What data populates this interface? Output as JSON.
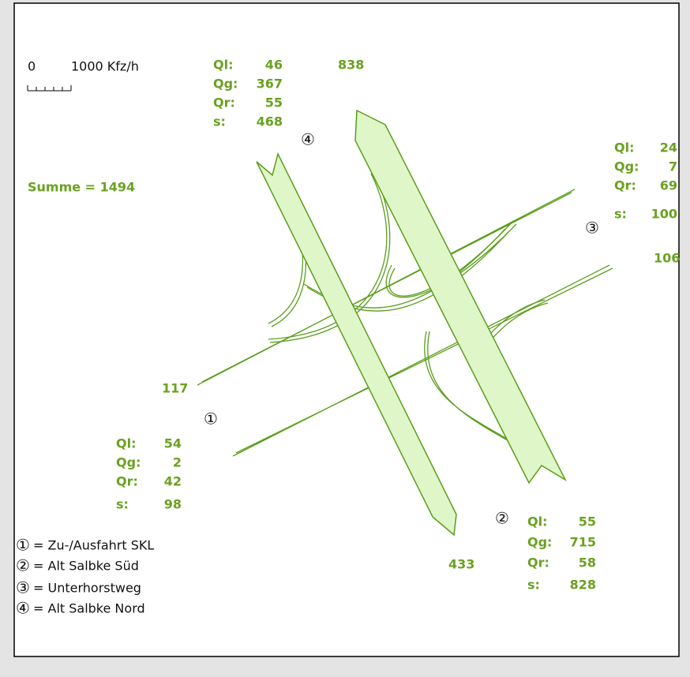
{
  "scale": {
    "zero": "0",
    "label": "1000 Kfz/h"
  },
  "sum": "Summe = 1494",
  "row_labels": [
    "Ql:",
    "Qg:",
    "Qr:",
    "s:"
  ],
  "approaches": [
    {
      "id": "①",
      "values": [
        54,
        2,
        42,
        98
      ],
      "exit": 117
    },
    {
      "id": "②",
      "values": [
        55,
        715,
        58,
        828
      ],
      "exit": 433
    },
    {
      "id": "③",
      "values": [
        24,
        7,
        69,
        100
      ],
      "exit": 106
    },
    {
      "id": "④",
      "values": [
        46,
        367,
        55,
        468
      ],
      "exit": 838
    }
  ],
  "legend": [
    "= Zu-/Ausfahrt SKL",
    "= Alt Salbke Süd",
    "= Unterhorstweg",
    "= Alt Salbke Nord"
  ]
}
